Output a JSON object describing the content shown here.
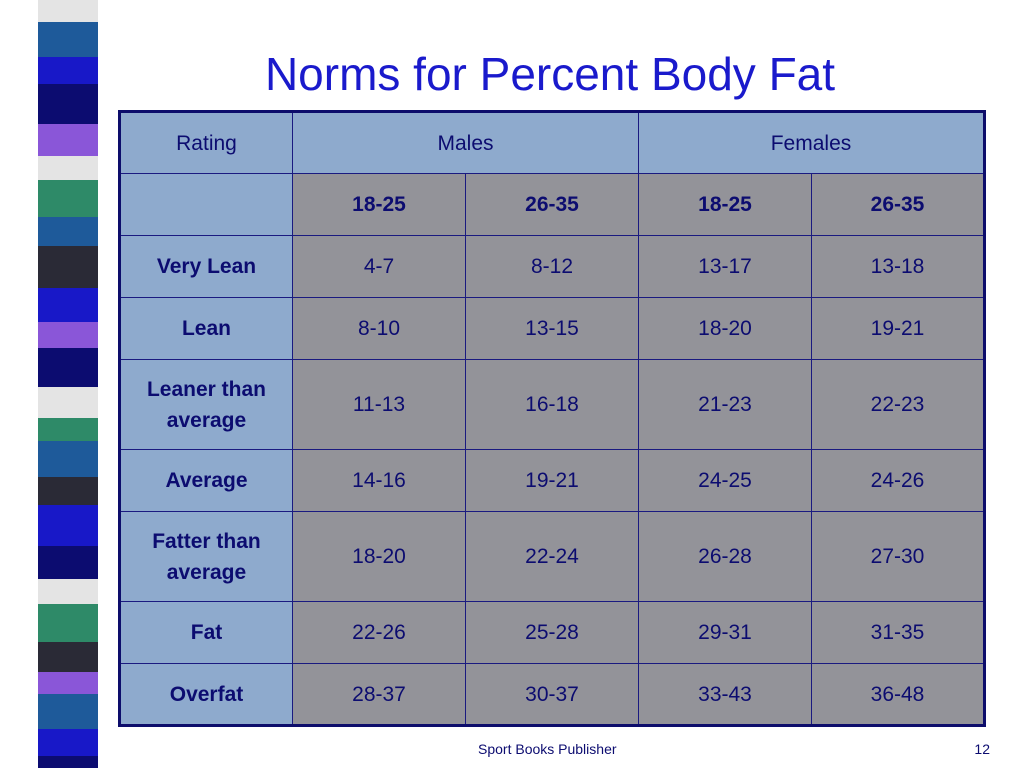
{
  "title": "Norms for Percent Body Fat",
  "table": {
    "header": {
      "rating": "Rating",
      "males": "Males",
      "females": "Females"
    },
    "subheader": {
      "label": "",
      "ages": [
        "18-25",
        "26-35",
        "18-25",
        "26-35"
      ]
    },
    "rows": [
      {
        "label": "Very Lean",
        "values": [
          "4-7",
          "8-12",
          "13-17",
          "13-18"
        ]
      },
      {
        "label": "Lean",
        "values": [
          "8-10",
          "13-15",
          "18-20",
          "19-21"
        ]
      },
      {
        "label": "Leaner than average",
        "values": [
          "11-13",
          "16-18",
          "21-23",
          "22-23"
        ]
      },
      {
        "label": "Average",
        "values": [
          "14-16",
          "19-21",
          "24-25",
          "24-26"
        ]
      },
      {
        "label": "Fatter than average",
        "values": [
          "18-20",
          "22-24",
          "26-28",
          "27-30"
        ]
      },
      {
        "label": "Fat",
        "values": [
          "22-26",
          "25-28",
          "29-31",
          "31-35"
        ]
      },
      {
        "label": "Overfat",
        "values": [
          "28-37",
          "30-37",
          "33-43",
          "36-48"
        ]
      }
    ]
  },
  "footer": {
    "publisher": "Sport Books Publisher",
    "page": "12"
  },
  "colors": {
    "title": "#1a1acc",
    "header_fill": "#8eaacd",
    "cell_fill": "#939399",
    "border": "#0d0d6b",
    "text": "#0c0c70"
  }
}
